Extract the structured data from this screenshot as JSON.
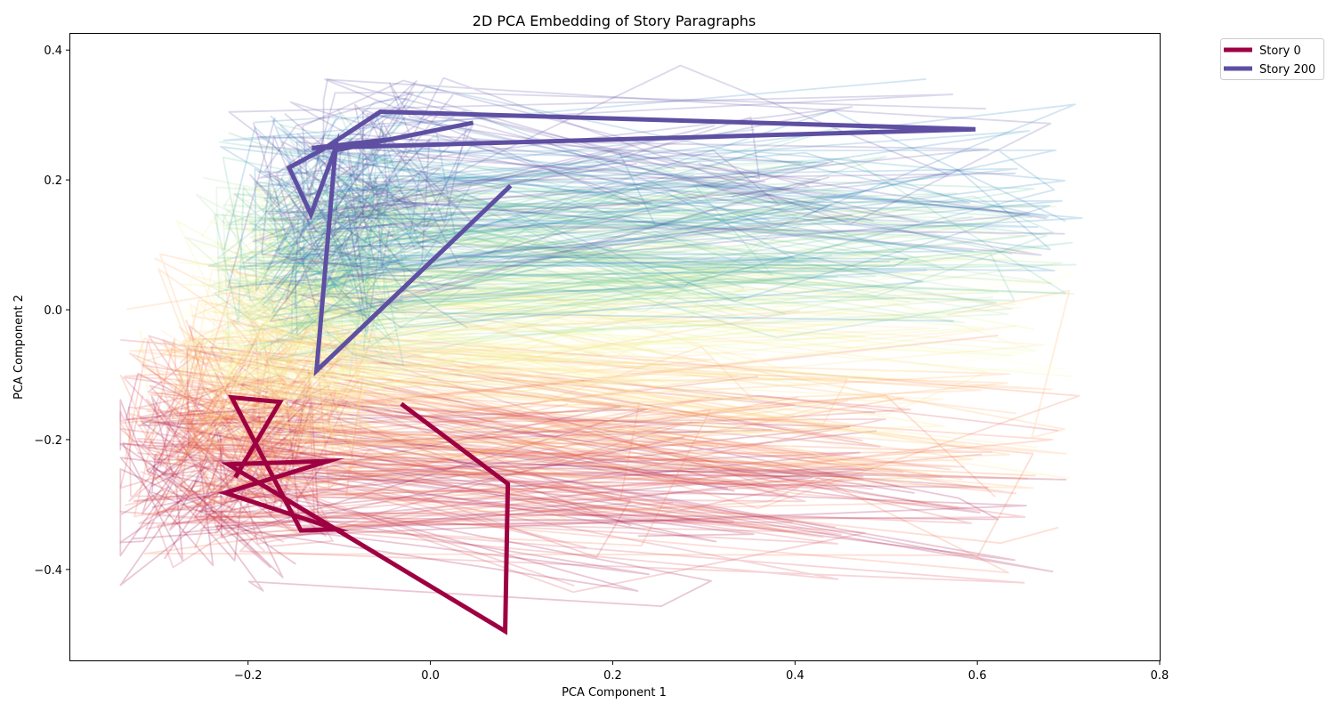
{
  "chart_data": {
    "type": "line",
    "title": "2D PCA Embedding of Story Paragraphs",
    "xlabel": "PCA Component 1",
    "ylabel": "PCA Component 2",
    "xlim": [
      -0.395,
      0.8
    ],
    "ylim": [
      -0.54,
      0.425
    ],
    "xticks": [
      -0.2,
      0.0,
      0.2,
      0.4,
      0.6,
      0.8
    ],
    "xtick_labels": [
      "−0.2",
      "0.0",
      "0.2",
      "0.4",
      "0.6",
      "0.8"
    ],
    "yticks": [
      -0.4,
      -0.2,
      0.0,
      0.2,
      0.4
    ],
    "ytick_labels": [
      "−0.4",
      "−0.2",
      "0.0",
      "0.2",
      "0.4"
    ],
    "grid": false,
    "legend_placement": "outside-upper-right",
    "background_colormap": [
      "#9e0142",
      "#d53e4f",
      "#f46d43",
      "#fdae61",
      "#fee08b",
      "#ffffbf",
      "#e6f598",
      "#abdda4",
      "#66c2a5",
      "#3288bd",
      "#5e4fa2"
    ],
    "series": [
      {
        "name": "Story 0",
        "color": "#9e0142",
        "x": [
          -0.032,
          0.085,
          0.082,
          -0.222,
          -0.112,
          -0.225,
          -0.103,
          -0.142,
          -0.218,
          -0.165,
          -0.214
        ],
        "y": [
          -0.145,
          -0.268,
          -0.495,
          -0.238,
          -0.233,
          -0.282,
          -0.338,
          -0.34,
          -0.135,
          -0.142,
          -0.258
        ]
      },
      {
        "name": "Story 200",
        "color": "#5e4fa2",
        "x": [
          0.088,
          -0.125,
          -0.104,
          -0.131,
          -0.155,
          -0.118,
          -0.055,
          0.598,
          -0.13,
          -0.047,
          -0.103,
          0.047
        ],
        "y": [
          0.191,
          -0.094,
          0.249,
          0.147,
          0.219,
          0.247,
          0.305,
          0.278,
          0.249,
          0.262,
          0.246,
          0.288
        ]
      }
    ]
  }
}
